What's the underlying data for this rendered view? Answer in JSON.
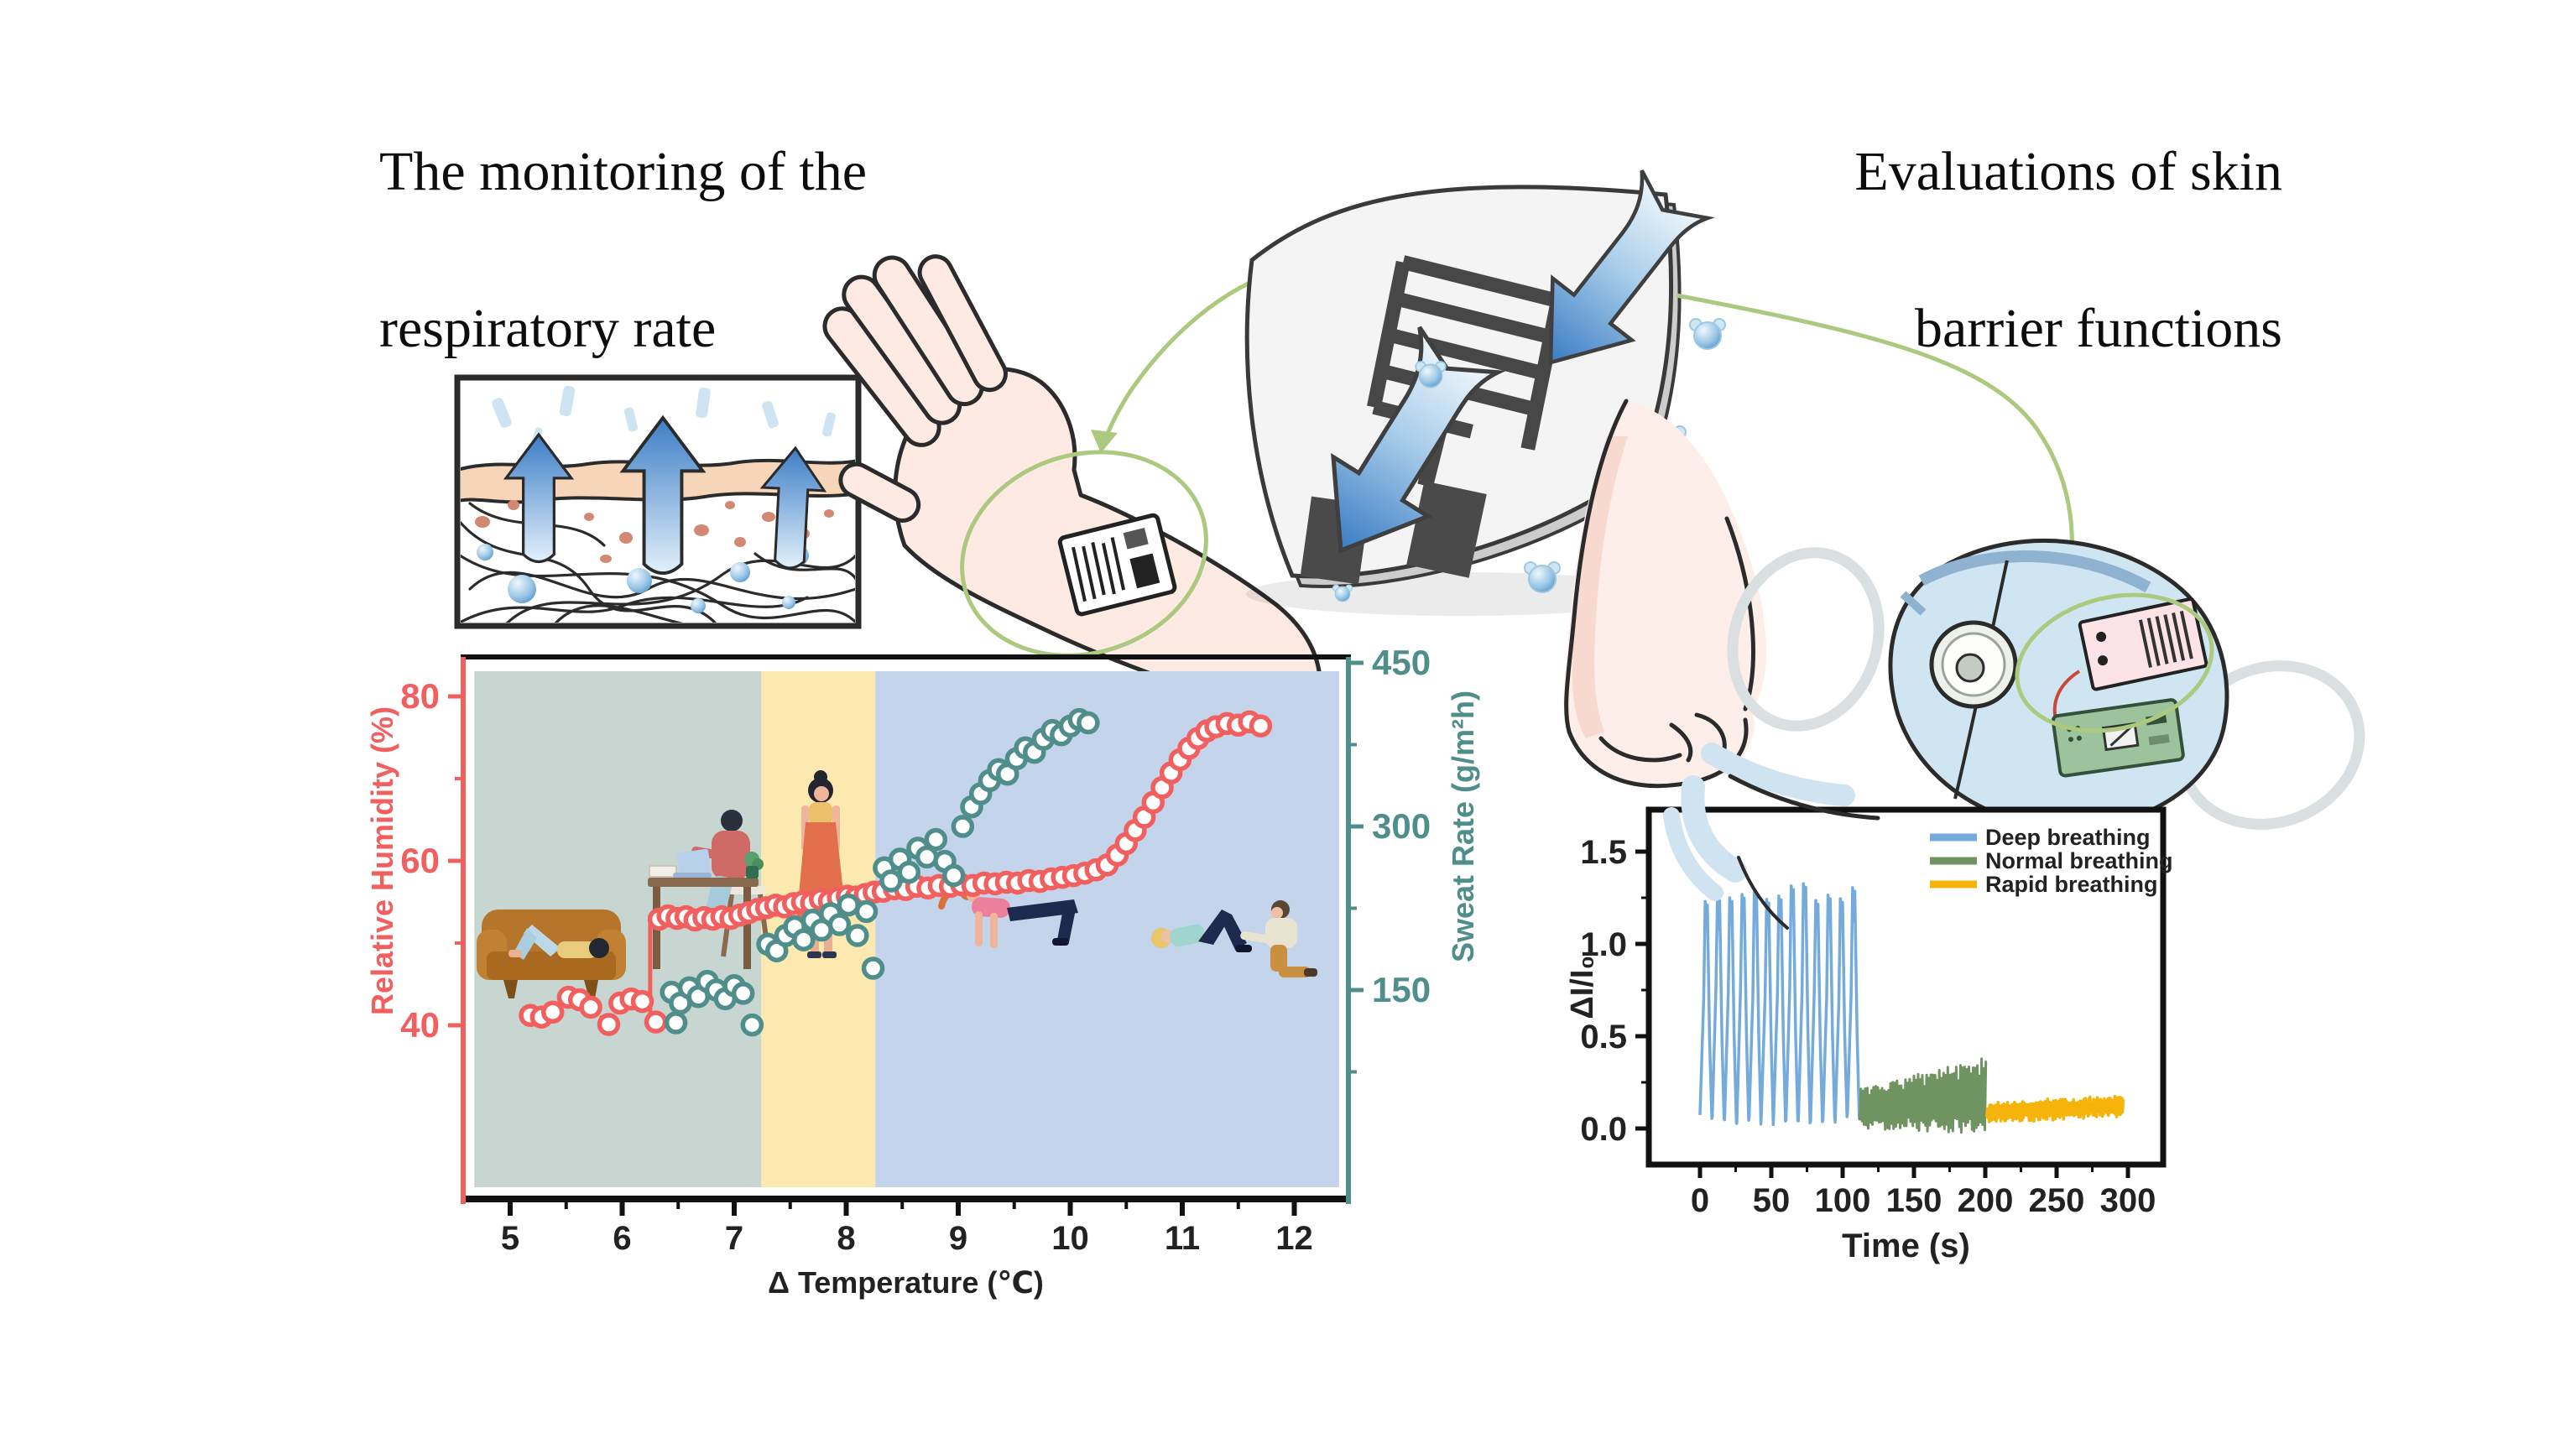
{
  "titles": {
    "left_line1": "The monitoring of the",
    "left_line2": "respiratory rate",
    "right_line1": "Evaluations of skin",
    "right_line2": "barrier functions"
  },
  "colors": {
    "humidity_red": "#f25f5f",
    "sweat_teal": "#4f8e8a",
    "zone_rest": "#c7d6d1",
    "zone_stand": "#fbe9af",
    "zone_exercise": "#c4d4eb",
    "deep_blue": "#74aadc",
    "normal_green": "#6f9461",
    "rapid_yellow": "#f6b40a",
    "connector_green": "#abc97f"
  },
  "chart_data": [
    {
      "type": "scatter",
      "xlabel": "Δ Temperature (℃)",
      "x_ticks": [
        5,
        6,
        7,
        8,
        9,
        10,
        11,
        12
      ],
      "x_minor_step": 0.5,
      "y_left": {
        "label": "Relative Humidity (%)",
        "ticks": [
          40,
          60,
          80
        ],
        "minor": [
          50,
          70
        ],
        "color": "#f25f5f"
      },
      "y_right": {
        "label": "Sweat Rate (g/m²h)",
        "ticks": [
          150,
          300,
          450
        ],
        "minor": [
          75,
          225,
          375
        ],
        "color": "#4f8e8a"
      },
      "zones": [
        {
          "from": 4.68,
          "to": 7.24,
          "color": "#c7d6d1"
        },
        {
          "from": 7.24,
          "to": 8.26,
          "color": "#fbe9af"
        },
        {
          "from": 8.26,
          "to": 12.4,
          "color": "#c4d4eb"
        }
      ],
      "jump_line": {
        "x": 6.25,
        "from": 40.5,
        "to": 53.0
      },
      "series": [
        {
          "name": "Relative Humidity",
          "axis": "left",
          "color": "#f25f5f",
          "marker": "open-circle",
          "points": [
            [
              5.18,
              41.2
            ],
            [
              5.28,
              41.0
            ],
            [
              5.38,
              41.6
            ],
            [
              5.52,
              43.4
            ],
            [
              5.62,
              43.1
            ],
            [
              5.72,
              42.2
            ],
            [
              5.88,
              40.1
            ],
            [
              5.98,
              42.7
            ],
            [
              6.08,
              43.2
            ],
            [
              6.18,
              42.9
            ],
            [
              6.3,
              40.4
            ],
            [
              6.33,
              52.9
            ],
            [
              6.41,
              53.3
            ],
            [
              6.49,
              53.0
            ],
            [
              6.57,
              53.2
            ],
            [
              6.65,
              52.8
            ],
            [
              6.73,
              53.1
            ],
            [
              6.81,
              52.9
            ],
            [
              6.89,
              53.2
            ],
            [
              6.97,
              53.0
            ],
            [
              7.05,
              53.4
            ],
            [
              7.13,
              53.7
            ],
            [
              7.21,
              54.1
            ],
            [
              7.29,
              54.3
            ],
            [
              7.37,
              54.6
            ],
            [
              7.45,
              54.4
            ],
            [
              7.53,
              54.8
            ],
            [
              7.61,
              55.0
            ],
            [
              7.69,
              54.9
            ],
            [
              7.77,
              55.3
            ],
            [
              7.85,
              55.1
            ],
            [
              7.93,
              55.5
            ],
            [
              8.01,
              55.7
            ],
            [
              8.09,
              55.6
            ],
            [
              8.17,
              55.9
            ],
            [
              8.25,
              56.2
            ],
            [
              8.33,
              56.3
            ],
            [
              8.43,
              56.6
            ],
            [
              8.53,
              56.5
            ],
            [
              8.63,
              56.9
            ],
            [
              8.73,
              56.7
            ],
            [
              8.83,
              57.0
            ],
            [
              8.93,
              56.9
            ],
            [
              9.03,
              57.1
            ],
            [
              9.13,
              57.0
            ],
            [
              9.23,
              57.3
            ],
            [
              9.33,
              57.2
            ],
            [
              9.43,
              57.4
            ],
            [
              9.53,
              57.3
            ],
            [
              9.63,
              57.6
            ],
            [
              9.73,
              57.5
            ],
            [
              9.83,
              57.8
            ],
            [
              9.93,
              58.0
            ],
            [
              10.03,
              58.2
            ],
            [
              10.13,
              58.5
            ],
            [
              10.23,
              58.9
            ],
            [
              10.33,
              59.5
            ],
            [
              10.42,
              60.7
            ],
            [
              10.5,
              62.1
            ],
            [
              10.58,
              63.7
            ],
            [
              10.66,
              65.3
            ],
            [
              10.74,
              67.1
            ],
            [
              10.82,
              68.9
            ],
            [
              10.9,
              70.7
            ],
            [
              10.98,
              72.3
            ],
            [
              11.06,
              73.7
            ],
            [
              11.14,
              74.9
            ],
            [
              11.22,
              75.8
            ],
            [
              11.3,
              76.3
            ],
            [
              11.4,
              76.7
            ],
            [
              11.5,
              76.5
            ],
            [
              11.6,
              76.9
            ],
            [
              11.7,
              76.4
            ]
          ]
        },
        {
          "name": "Sweat Rate",
          "axis": "right",
          "color": "#4f8e8a",
          "marker": "open-circle",
          "points": [
            [
              6.44,
              148
            ],
            [
              6.48,
              120
            ],
            [
              6.52,
              138
            ],
            [
              6.6,
              152
            ],
            [
              6.68,
              144
            ],
            [
              6.76,
              158
            ],
            [
              6.84,
              150
            ],
            [
              6.92,
              142
            ],
            [
              7.0,
              154
            ],
            [
              7.08,
              147
            ],
            [
              7.16,
              118
            ],
            [
              7.3,
              192
            ],
            [
              7.38,
              186
            ],
            [
              7.46,
              200
            ],
            [
              7.54,
              208
            ],
            [
              7.62,
              196
            ],
            [
              7.7,
              214
            ],
            [
              7.78,
              205
            ],
            [
              7.86,
              220
            ],
            [
              7.94,
              210
            ],
            [
              8.02,
              228
            ],
            [
              8.1,
              200
            ],
            [
              8.18,
              222
            ],
            [
              8.24,
              170
            ],
            [
              8.34,
              262
            ],
            [
              8.4,
              250
            ],
            [
              8.48,
              270
            ],
            [
              8.56,
              258
            ],
            [
              8.64,
              280
            ],
            [
              8.72,
              272
            ],
            [
              8.8,
              288
            ],
            [
              8.88,
              268
            ],
            [
              8.96,
              255
            ],
            [
              9.04,
              300
            ],
            [
              9.12,
              318
            ],
            [
              9.2,
              330
            ],
            [
              9.28,
              342
            ],
            [
              9.36,
              352
            ],
            [
              9.44,
              348
            ],
            [
              9.52,
              362
            ],
            [
              9.6,
              372
            ],
            [
              9.68,
              368
            ],
            [
              9.76,
              380
            ],
            [
              9.84,
              388
            ],
            [
              9.92,
              384
            ],
            [
              10.0,
              392
            ],
            [
              10.08,
              398
            ],
            [
              10.16,
              395
            ]
          ]
        }
      ]
    },
    {
      "type": "line",
      "xlabel": "Time (s)",
      "ylabel": "ΔI/I₀",
      "x_ticks": [
        0,
        50,
        100,
        150,
        200,
        250,
        300
      ],
      "y_ticks": [
        "0.0",
        "0.5",
        "1.0",
        "1.5"
      ],
      "legend_position": "top-right",
      "series": [
        {
          "name": "Deep breathing",
          "color": "#74aadc",
          "t_range": [
            0,
            112
          ],
          "cycles": 13,
          "y_base": 0.03,
          "y_peak": 1.3
        },
        {
          "name": "Normal breathing",
          "color": "#6f9461",
          "t_range": [
            112,
            201
          ],
          "cycles": 30,
          "y_base": 0.01,
          "y_peak": 0.35
        },
        {
          "name": "Rapid breathing",
          "color": "#f6b40a",
          "t_range": [
            201,
            297
          ],
          "cycles": 58,
          "y_base": 0.04,
          "y_peak": 0.17
        }
      ]
    }
  ]
}
